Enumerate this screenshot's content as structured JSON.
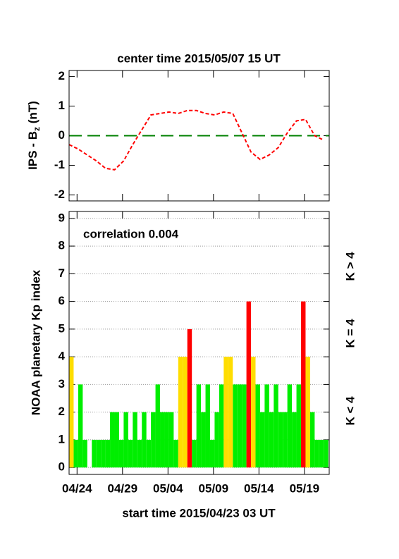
{
  "chart_data": [
    {
      "type": "line",
      "title": "center time 2015/05/07 15 UT",
      "ylabel": [
        "IPS - B",
        "z",
        " (nT)"
      ],
      "x": [
        0,
        1,
        2,
        3,
        4,
        5,
        6,
        7,
        8,
        9,
        10,
        11,
        12,
        13,
        14,
        15,
        16,
        17,
        18,
        19,
        20,
        21,
        22,
        23,
        24,
        25,
        26,
        27,
        28
      ],
      "series": [
        {
          "color": "#ff0000",
          "values": [
            -0.3,
            -0.45,
            -0.65,
            -0.85,
            -1.1,
            -1.15,
            -0.85,
            -0.3,
            0.2,
            0.7,
            0.75,
            0.8,
            0.75,
            0.85,
            0.85,
            0.75,
            0.7,
            0.8,
            0.75,
            0.1,
            -0.55,
            -0.8,
            -0.65,
            -0.4,
            0.1,
            0.5,
            0.55,
            0.0,
            -0.15
          ]
        }
      ],
      "hline": {
        "value": 0,
        "color": "#008000"
      },
      "xlim": [
        0,
        28.6
      ],
      "ylim": [
        -2.2,
        2.2
      ],
      "yticks": [
        2,
        1,
        0,
        -1,
        -2
      ]
    },
    {
      "type": "bar",
      "ylabel": "NOAA planetary Kp index",
      "xlabel": "start time 2015/04/23 03 UT",
      "annotation": "correlation 0.004",
      "x": [
        0,
        0.5,
        1,
        1.5,
        2,
        2.5,
        3,
        3.5,
        4,
        4.5,
        5,
        5.5,
        6,
        6.5,
        7,
        7.5,
        8,
        8.5,
        9,
        9.5,
        10,
        10.5,
        11,
        11.5,
        12,
        12.5,
        13,
        13.5,
        14,
        14.5,
        15,
        15.5,
        16,
        16.5,
        17,
        17.5,
        18,
        18.5,
        19,
        19.5,
        20,
        20.5,
        21,
        21.5,
        22,
        22.5,
        23,
        23.5,
        24,
        24.5,
        25,
        25.5,
        26,
        26.5,
        27,
        27.5,
        28
      ],
      "bar_width": 0.5,
      "series": [
        {
          "name": "K < 4",
          "color": "#00ee00",
          "values": [
            null,
            1,
            3,
            1,
            0,
            1,
            1,
            1,
            1,
            2,
            2,
            1,
            2,
            1,
            2,
            1,
            2,
            1,
            2,
            3,
            2,
            2,
            2,
            1,
            null,
            null,
            null,
            1,
            3,
            2,
            3,
            1,
            2,
            3,
            null,
            null,
            3,
            3,
            3,
            null,
            null,
            3,
            2,
            3,
            2,
            3,
            2,
            2,
            3,
            2,
            3,
            null,
            null,
            2,
            1,
            1,
            1
          ]
        },
        {
          "name": "K = 4",
          "color": "#ffdd00",
          "values": [
            4,
            null,
            null,
            null,
            null,
            null,
            null,
            null,
            null,
            null,
            null,
            null,
            null,
            null,
            null,
            null,
            null,
            null,
            null,
            null,
            null,
            null,
            null,
            null,
            4,
            4,
            null,
            null,
            null,
            null,
            null,
            null,
            null,
            null,
            4,
            4,
            null,
            null,
            null,
            null,
            4,
            null,
            null,
            null,
            null,
            null,
            null,
            null,
            null,
            null,
            null,
            null,
            4,
            null,
            null,
            null,
            null
          ]
        },
        {
          "name": "K > 4",
          "color": "#ff0000",
          "values": [
            null,
            null,
            null,
            null,
            null,
            null,
            null,
            null,
            null,
            null,
            null,
            null,
            null,
            null,
            null,
            null,
            null,
            null,
            null,
            null,
            null,
            null,
            null,
            null,
            null,
            null,
            5,
            null,
            null,
            null,
            null,
            null,
            null,
            null,
            null,
            null,
            null,
            null,
            null,
            6,
            null,
            null,
            null,
            null,
            null,
            null,
            null,
            null,
            null,
            null,
            null,
            6,
            null,
            null,
            null,
            null,
            null
          ]
        }
      ],
      "xlim": [
        0,
        28.6
      ],
      "ylim": [
        -0.25,
        9.25
      ],
      "yticks": [
        0,
        1,
        2,
        3,
        4,
        5,
        6,
        7,
        8,
        9
      ],
      "grid": true,
      "xticks": [
        {
          "value": 0.875,
          "label": "04/24"
        },
        {
          "value": 5.875,
          "label": "04/29"
        },
        {
          "value": 10.875,
          "label": "05/04"
        },
        {
          "value": 15.875,
          "label": "05/09"
        },
        {
          "value": 20.875,
          "label": "05/14"
        },
        {
          "value": 25.875,
          "label": "05/19"
        }
      ]
    }
  ]
}
